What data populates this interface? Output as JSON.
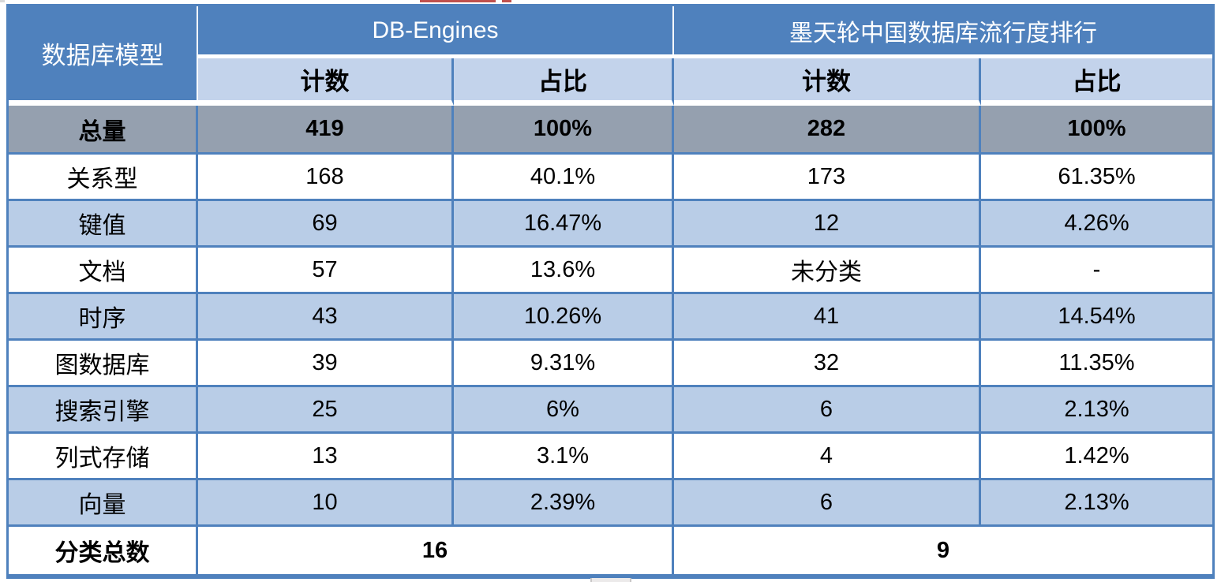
{
  "chart_data": {
    "type": "table",
    "corner_header": "数据库模型",
    "column_groups": [
      {
        "title": "DB-Engines",
        "columns": [
          "计数",
          "占比"
        ]
      },
      {
        "title": "墨天轮中国数据库流行度排行",
        "columns": [
          "计数",
          "占比"
        ]
      }
    ],
    "rows": [
      {
        "label": "总量",
        "cells": [
          "419",
          "100%",
          "282",
          "100%"
        ],
        "style": "total"
      },
      {
        "label": "关系型",
        "cells": [
          "168",
          "40.1%",
          "173",
          "61.35%"
        ]
      },
      {
        "label": "键值",
        "cells": [
          "69",
          "16.47%",
          "12",
          "4.26%"
        ]
      },
      {
        "label": "文档",
        "cells": [
          "57",
          "13.6%",
          "未分类",
          "-"
        ]
      },
      {
        "label": "时序",
        "cells": [
          "43",
          "10.26%",
          "41",
          "14.54%"
        ]
      },
      {
        "label": "图数据库",
        "cells": [
          "39",
          "9.31%",
          "32",
          "11.35%"
        ]
      },
      {
        "label": "搜索引擎",
        "cells": [
          "25",
          "6%",
          "6",
          "2.13%"
        ]
      },
      {
        "label": "列式存储",
        "cells": [
          "13",
          "3.1%",
          "4",
          "1.42%"
        ]
      },
      {
        "label": "向量",
        "cells": [
          "10",
          "2.39%",
          "6",
          "2.13%"
        ]
      }
    ],
    "footer": {
      "label": "分类总数",
      "left_total": "16",
      "right_total": "9"
    }
  },
  "colors": {
    "header_blue": "#4F81BD",
    "subheader_blue": "#C3D3EB",
    "row_light_blue": "#B9CDE7",
    "total_row_gray": "#95A0AF",
    "border_blue": "#4F81BD",
    "artifact_red": "#C0504D"
  }
}
